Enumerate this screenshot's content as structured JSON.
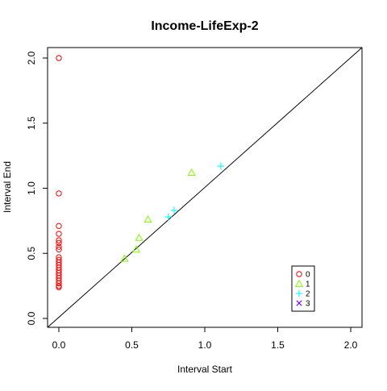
{
  "chart_data": {
    "type": "scatter",
    "title": "Income-LifeExp-2",
    "xlabel": "Interval Start",
    "ylabel": "Interval End",
    "xlim": [
      0,
      2.0
    ],
    "ylim": [
      0,
      2.0
    ],
    "x_ticks": [
      "0.0",
      "0.5",
      "1.0",
      "1.5",
      "2.0"
    ],
    "y_ticks": [
      "0.0",
      "0.5",
      "1.0",
      "1.5",
      "2.0"
    ],
    "tick_values": [
      0,
      0.5,
      1.0,
      1.5,
      2.0
    ],
    "diagonal_line": true,
    "grid": false,
    "legend_position": "bottom-right",
    "series": [
      {
        "name": "0",
        "color": "#FF0000",
        "marker": "circle",
        "points": [
          [
            0,
            2.0
          ],
          [
            0,
            0.96
          ],
          [
            0,
            0.71
          ],
          [
            0,
            0.65
          ],
          [
            0,
            0.6
          ],
          [
            0,
            0.58
          ],
          [
            0,
            0.55
          ],
          [
            0,
            0.53
          ],
          [
            0,
            0.47
          ],
          [
            0,
            0.45
          ],
          [
            0,
            0.43
          ],
          [
            0,
            0.41
          ],
          [
            0,
            0.39
          ],
          [
            0,
            0.37
          ],
          [
            0,
            0.35
          ],
          [
            0,
            0.33
          ],
          [
            0,
            0.31
          ],
          [
            0,
            0.29
          ],
          [
            0,
            0.27
          ],
          [
            0,
            0.25
          ],
          [
            0,
            0.24
          ]
        ]
      },
      {
        "name": "1",
        "color": "#80FF00",
        "marker": "triangle",
        "points": [
          [
            0.45,
            0.46
          ],
          [
            0.53,
            0.53
          ],
          [
            0.55,
            0.62
          ],
          [
            0.61,
            0.76
          ],
          [
            0.91,
            1.12
          ]
        ]
      },
      {
        "name": "2",
        "color": "#00FFFF",
        "marker": "plus",
        "points": [
          [
            0.75,
            0.78
          ],
          [
            0.79,
            0.83
          ],
          [
            1.11,
            1.17
          ]
        ]
      },
      {
        "name": "3",
        "color": "#8000FF",
        "marker": "cross",
        "points": []
      }
    ]
  }
}
